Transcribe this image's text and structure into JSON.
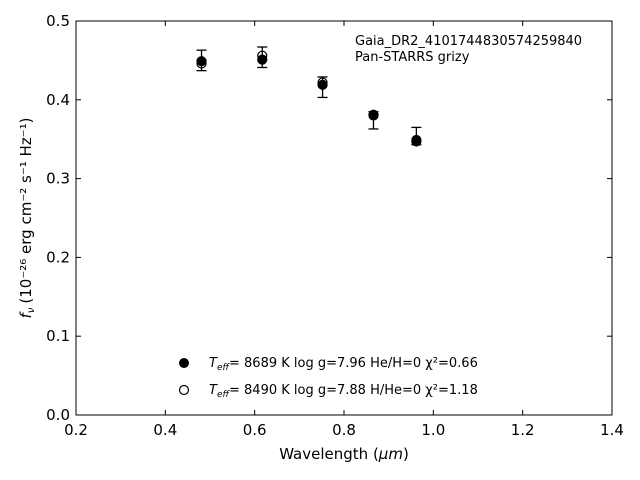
{
  "chart_data": {
    "type": "scatter",
    "xlabel_main": "Wavelength (",
    "xlabel_unit": "μm",
    "xlabel_end": ")",
    "ylabel_prefix": "f",
    "ylabel_sub": "ν",
    "ylabel_units": "(10⁻²⁶ erg cm⁻² s⁻¹ Hz⁻¹)",
    "xlim": [
      0.2,
      1.4
    ],
    "ylim": [
      0.0,
      0.5
    ],
    "xticks": [
      "0.2",
      "0.4",
      "0.6",
      "0.8",
      "1.0",
      "1.2",
      "1.4"
    ],
    "yticks": [
      "0.0",
      "0.1",
      "0.2",
      "0.3",
      "0.4",
      "0.5"
    ],
    "annotations": [
      "Gaia_DR2_4101744830574259840",
      "Pan-STARRS grizy"
    ],
    "observed": [
      {
        "x": 0.481,
        "y": 0.45,
        "err": 0.013
      },
      {
        "x": 0.617,
        "y": 0.454,
        "err": 0.013
      },
      {
        "x": 0.752,
        "y": 0.416,
        "err": 0.013
      },
      {
        "x": 0.866,
        "y": 0.374,
        "err": 0.011
      },
      {
        "x": 0.962,
        "y": 0.354,
        "err": 0.011
      }
    ],
    "series": [
      {
        "marker": "filled",
        "legend": {
          "teff": "T",
          "teff_sub": "eff",
          "text": "=  8689 K  log g=7.96  He/H=0  χ²=0.66"
        },
        "points": [
          {
            "x": 0.481,
            "y": 0.449
          },
          {
            "x": 0.617,
            "y": 0.451
          },
          {
            "x": 0.752,
            "y": 0.419
          },
          {
            "x": 0.866,
            "y": 0.38
          },
          {
            "x": 0.962,
            "y": 0.349
          }
        ]
      },
      {
        "marker": "open",
        "legend": {
          "teff": "T",
          "teff_sub": "eff",
          "text": "=  8490 K  log g=7.88  H/He=0  χ²=1.18"
        },
        "points": [
          {
            "x": 0.481,
            "y": 0.446
          },
          {
            "x": 0.617,
            "y": 0.456
          },
          {
            "x": 0.752,
            "y": 0.422
          },
          {
            "x": 0.866,
            "y": 0.381
          },
          {
            "x": 0.962,
            "y": 0.347
          }
        ]
      }
    ],
    "legend_position": "lower-center",
    "grid": false
  }
}
